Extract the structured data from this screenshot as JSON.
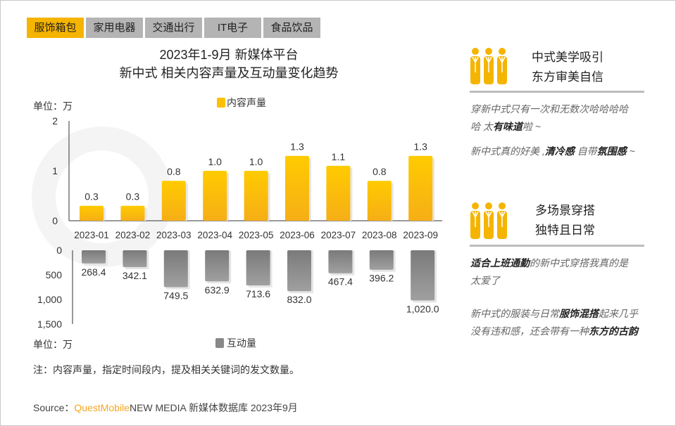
{
  "tabs": [
    {
      "label": "服饰箱包",
      "active": true
    },
    {
      "label": "家用电器"
    },
    {
      "label": "交通出行"
    },
    {
      "label": "IT电子"
    },
    {
      "label": "食品饮品"
    }
  ],
  "title_line1": "2023年1-9月 新媒体平台",
  "title_line2": "新中式 相关内容声量及互动量变化趋势",
  "watermark": "QUESTMOBILE",
  "colors": {
    "accent": "#f5b400",
    "content_bar": "#fcc800",
    "interaction_bar": "#8a8a8a"
  },
  "chart_data": [
    {
      "type": "bar",
      "unit_label": "单位：万",
      "legend": "内容声量",
      "legend_placement": "top-center",
      "categories": [
        "2023-01",
        "2023-02",
        "2023-03",
        "2023-04",
        "2023-05",
        "2023-06",
        "2023-07",
        "2023-08",
        "2023-09"
      ],
      "values": [
        0.3,
        0.3,
        0.8,
        1.0,
        1.0,
        1.3,
        1.1,
        0.8,
        1.3
      ],
      "labels": [
        "0.3",
        "0.3",
        "0.8",
        "1.0",
        "1.0",
        "1.3",
        "1.1",
        "0.8",
        "1.3"
      ],
      "ylim": [
        0,
        2
      ],
      "yticks": [
        "0",
        "1",
        "2"
      ]
    },
    {
      "type": "bar",
      "orientation": "downward",
      "unit_label": "单位：万",
      "legend": "互动量",
      "legend_placement": "bottom-center",
      "categories": [
        "2023-01",
        "2023-02",
        "2023-03",
        "2023-04",
        "2023-05",
        "2023-06",
        "2023-07",
        "2023-08",
        "2023-09"
      ],
      "values": [
        268.4,
        342.1,
        749.5,
        632.9,
        713.6,
        832.0,
        467.4,
        396.2,
        1020.0
      ],
      "labels": [
        "268.4",
        "342.1",
        "749.5",
        "632.9",
        "713.6",
        "832.0",
        "467.4",
        "396.2",
        "1,020.0"
      ],
      "ylim": [
        0,
        1500
      ],
      "yticks": [
        "0",
        "500",
        "1,000",
        "1,500"
      ]
    }
  ],
  "note": "注：内容声量，指定时间段内，提及相关关键词的发文数量。",
  "source": {
    "prefix": "Source：",
    "brand": "QuestMobile",
    "rest": "NEW MEDIA 新媒体数据库 2023年9月"
  },
  "panel": {
    "section1": {
      "icon": "people-group-icon",
      "line1": "中式美学吸引",
      "line2": "东方审美自信",
      "q1": [
        "穿新中式只有一次和无数次哈哈哈哈哈 太",
        "有味道",
        "啦 ~"
      ],
      "q2": [
        "新中式真的好美 ,",
        "清冷感",
        " 自带",
        "氛围感",
        " ~"
      ]
    },
    "section2": {
      "icon": "people-group-icon",
      "line1": "多场景穿搭",
      "line2": "独特且日常",
      "q1": [
        "适合上班通勤",
        "的新中式穿搭我真的是太爱了"
      ],
      "q2": [
        "新中式的服装与日常",
        "服饰混搭",
        "起来几乎没有违和感，还会带有一种",
        "东方的古韵"
      ]
    }
  }
}
